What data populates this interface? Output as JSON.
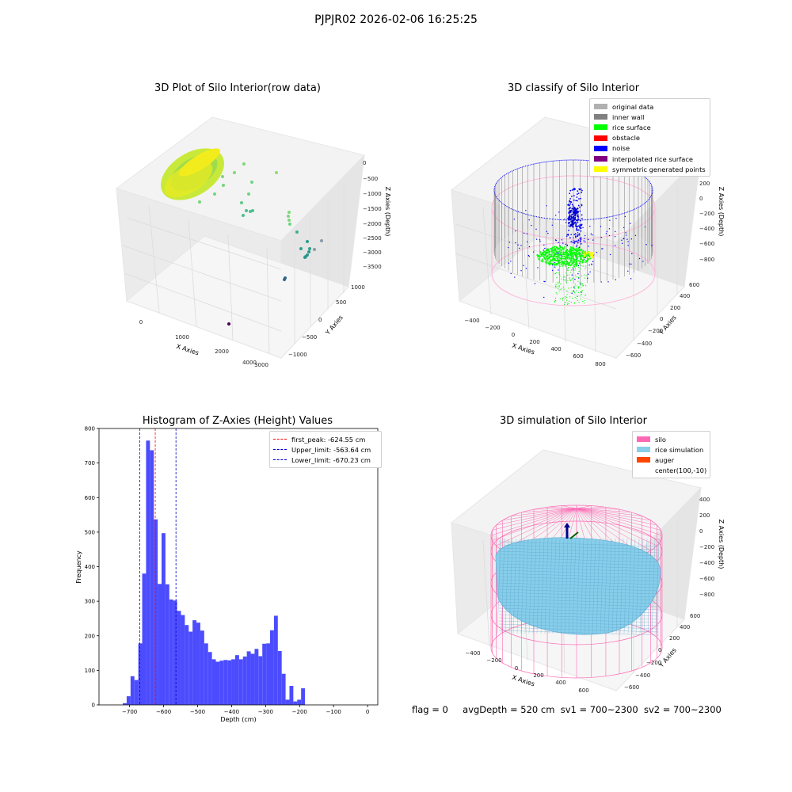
{
  "figure_title": "PJPJR02 2026-02-06 16:25:25",
  "status_line": {
    "flag": "flag = 0",
    "avg_depth": "avgDepth = 520 cm",
    "sv1": "sv1 = 700~2300",
    "sv2": "sv2 = 700~2300"
  },
  "colors": {
    "hist_bar": "#4c4cff",
    "first_peak": "#ff0000",
    "limits": "#0000cc",
    "silo": "#ff69b4",
    "rice": "#87ceeb",
    "auger": "#ff4500",
    "original": "#b0b0b0",
    "inner_wall": "#808080",
    "rice_surface": "#00ff00",
    "obstacle": "#ff0000",
    "noise": "#0000ff",
    "interpolated": "#800080",
    "symmetric": "#ffff00"
  },
  "chart_data": [
    {
      "type": "scatter",
      "title": "3D Plot of Silo Interior(row data)",
      "xlabel": "X Axies",
      "ylabel": "Y Axies",
      "zlabel": "Z Axies (Depth)",
      "x_ticks": [
        "0",
        "1000",
        "2000",
        "3000",
        "4000"
      ],
      "y_ticks": [
        "−1000",
        "−500",
        "0",
        "500",
        "1000"
      ],
      "z_ticks": [
        "0",
        "−500",
        "−1000",
        "−1500",
        "−2000",
        "−2500",
        "−3000",
        "−3500"
      ],
      "grid": true
    },
    {
      "type": "scatter",
      "title": "3D classify of Silo Interior",
      "xlabel": "X Axies",
      "ylabel": "Y Axies",
      "zlabel": "Z Axies (Depth)",
      "x_ticks": [
        "−400",
        "−200",
        "0",
        "200",
        "400",
        "600",
        "800"
      ],
      "y_ticks": [
        "−600",
        "−400",
        "−200",
        "0",
        "200",
        "400",
        "600"
      ],
      "z_ticks": [
        "200",
        "0",
        "−200",
        "−400",
        "−600",
        "−800"
      ],
      "legend": [
        "original data",
        "inner wall",
        "rice surface",
        "obstacle",
        "noise",
        "interpolated rice surface",
        "symmetric generated points"
      ],
      "legend_position": "top-right",
      "grid": true
    },
    {
      "type": "bar",
      "title": "Histogram of Z-Axies (Height) Values",
      "xlabel": "Depth (cm)",
      "ylabel": "Frequency",
      "xlim": [
        -790,
        30
      ],
      "ylim": [
        0,
        800
      ],
      "x_ticks": [
        -700,
        -600,
        -500,
        -400,
        -300,
        -200,
        -100,
        0
      ],
      "y_ticks": [
        0,
        100,
        200,
        300,
        400,
        500,
        600,
        700,
        800
      ],
      "bin_start": -720,
      "bin_width": 11.4,
      "values": [
        5,
        25,
        83,
        72,
        178,
        380,
        765,
        737,
        537,
        350,
        497,
        349,
        305,
        302,
        272,
        260,
        231,
        212,
        245,
        238,
        215,
        178,
        153,
        132,
        125,
        128,
        130,
        129,
        132,
        144,
        132,
        140,
        155,
        148,
        162,
        141,
        177,
        178,
        216,
        258,
        156,
        90,
        15,
        55,
        10,
        15,
        48
      ],
      "vlines": [
        {
          "name": "first_peak: -624.55 cm",
          "x": -624.55,
          "color": "#ff0000"
        },
        {
          "name": "Upper_limit: -563.64 cm",
          "x": -563.64,
          "color": "#0000cc"
        },
        {
          "name": "Lower_limit: -670.23 cm",
          "x": -670.23,
          "color": "#0000cc"
        }
      ],
      "legend_position": "top-right",
      "grid": false
    },
    {
      "type": "scatter",
      "title": "3D simulation of Silo Interior",
      "xlabel": "X Axies",
      "ylabel": "Y Axies",
      "zlabel": "Z Axies (Depth)",
      "x_ticks": [
        "−400",
        "−200",
        "0",
        "200",
        "400",
        "600"
      ],
      "y_ticks": [
        "−600",
        "−400",
        "−200",
        "0",
        "200",
        "400",
        "600"
      ],
      "z_ticks": [
        "400",
        "200",
        "0",
        "−200",
        "−400",
        "−600",
        "−800"
      ],
      "legend": [
        "silo",
        "rice simulation",
        "auger",
        "center(100,-10)"
      ],
      "legend_position": "top-right",
      "grid": true
    }
  ]
}
